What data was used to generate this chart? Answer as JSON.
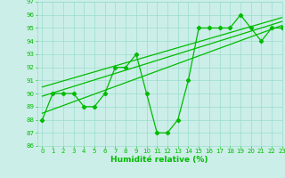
{
  "title": "",
  "xlabel": "Humidité relative (%)",
  "ylabel": "",
  "bg_color": "#cceee8",
  "grid_color": "#99ddcc",
  "line_color": "#00bb00",
  "marker_color": "#00bb00",
  "ylim": [
    86,
    97
  ],
  "xlim": [
    -0.5,
    23
  ],
  "yticks": [
    86,
    87,
    88,
    89,
    90,
    91,
    92,
    93,
    94,
    95,
    96,
    97
  ],
  "xticks": [
    0,
    1,
    2,
    3,
    4,
    5,
    6,
    7,
    8,
    9,
    10,
    11,
    12,
    13,
    14,
    15,
    16,
    17,
    18,
    19,
    20,
    21,
    22,
    23
  ],
  "series": [
    {
      "x": [
        0,
        1,
        2,
        3,
        4,
        5,
        6,
        7,
        8,
        9,
        10,
        11,
        12,
        13,
        14,
        15,
        16,
        17,
        18,
        19,
        20,
        21,
        22,
        23
      ],
      "y": [
        88,
        90,
        90,
        90,
        89,
        89,
        90,
        92,
        92,
        93,
        90,
        87,
        87,
        88,
        91,
        95,
        95,
        95,
        95,
        96,
        95,
        94,
        95,
        95
      ],
      "marker": "D",
      "markersize": 2.2,
      "linewidth": 0.9
    },
    {
      "x": [
        0,
        23
      ],
      "y": [
        88.5,
        95.2
      ],
      "linewidth": 0.9
    },
    {
      "x": [
        0,
        23
      ],
      "y": [
        89.8,
        95.5
      ],
      "linewidth": 0.9
    },
    {
      "x": [
        0,
        23
      ],
      "y": [
        90.5,
        95.8
      ],
      "linewidth": 0.9
    }
  ]
}
